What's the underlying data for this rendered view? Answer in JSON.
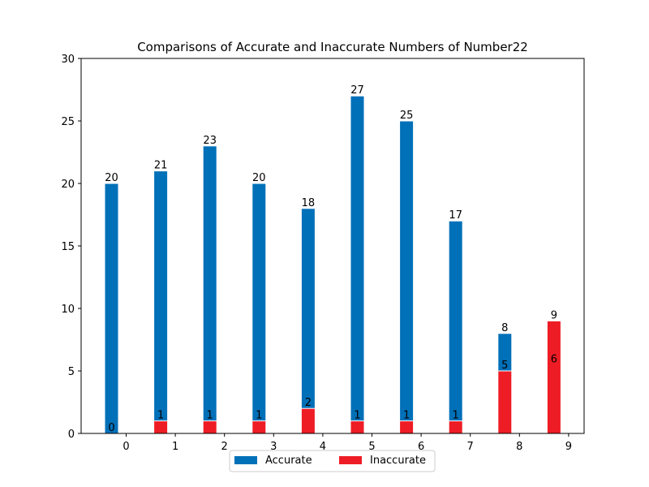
{
  "chart_data": {
    "type": "bar",
    "title": "Comparisons of Accurate and Inaccurate Numbers of Number22",
    "xlabel": "",
    "ylabel": "",
    "x_ticks": [
      "0",
      "1",
      "2",
      "3",
      "4",
      "5",
      "6",
      "7",
      "8",
      "9"
    ],
    "y_ticks": [
      "0",
      "5",
      "10",
      "15",
      "20",
      "25",
      "30"
    ],
    "ylim": [
      0,
      30
    ],
    "grid": false,
    "legend_position": "bottom-center",
    "series": [
      {
        "name": "Accurate",
        "color": "#0070b8",
        "values": [
          20,
          21,
          23,
          20,
          18,
          27,
          25,
          17,
          8,
          0
        ],
        "labels": [
          "20",
          "21",
          "23",
          "20",
          "18",
          "27",
          "25",
          "17",
          "8",
          ""
        ]
      },
      {
        "name": "Inaccurate",
        "color": "#ee1c25",
        "values": [
          0,
          1,
          1,
          1,
          2,
          1,
          1,
          1,
          5,
          9
        ],
        "labels": [
          "0",
          "1",
          "1",
          "1",
          "2",
          "1",
          "1",
          "1",
          "5",
          "9"
        ]
      }
    ],
    "extra_annotations": [
      {
        "text": "6",
        "bar_index": 9,
        "y": 6
      }
    ]
  }
}
